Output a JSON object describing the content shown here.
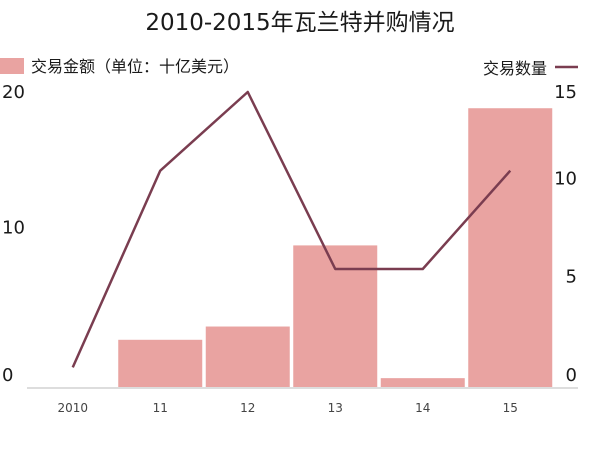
{
  "chart_data": {
    "type": "bar",
    "title": "2010-2015年瓦兰特并购情况",
    "categories": [
      "2010",
      "11",
      "12",
      "13",
      "14",
      "15"
    ],
    "series": [
      {
        "name": "交易金额（单位：十亿美元）",
        "type": "bar",
        "axis": "left",
        "values": [
          0,
          3.2,
          4.1,
          9.6,
          0.6,
          18.9
        ]
      },
      {
        "name": "交易数量",
        "type": "line",
        "axis": "right",
        "values": [
          1,
          11,
          15,
          6,
          6,
          11
        ]
      }
    ],
    "left_axis": {
      "ylim": [
        0,
        20
      ],
      "ticks": [
        "0",
        "10",
        "20"
      ]
    },
    "right_axis": {
      "ylim": [
        0,
        15
      ],
      "ticks": [
        "0",
        "5",
        "10",
        "15"
      ]
    },
    "legend": {
      "bar_label": "交易金额（单位：十亿美元）",
      "line_label": "交易数量",
      "bar_placement": "top-left",
      "line_placement": "top-right"
    },
    "colors": {
      "bar": "#E9A3A1",
      "line": "#7A3D50",
      "axis": "#bbbbbb"
    },
    "grid": false
  }
}
